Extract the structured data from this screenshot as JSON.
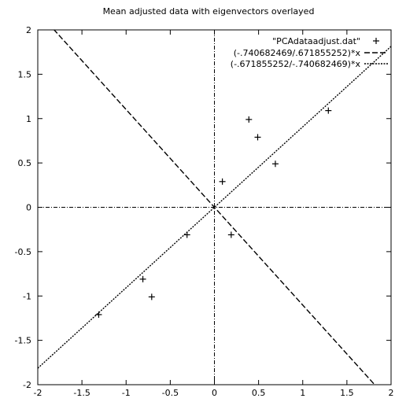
{
  "chart_data": {
    "type": "scatter",
    "title": "Mean adjusted data with eigenvectors overlayed",
    "xlabel": "",
    "ylabel": "",
    "xlim": [
      -2,
      2
    ],
    "ylim": [
      -2,
      2
    ],
    "x_ticks": [
      "-2",
      "-1.5",
      "-1",
      "-0.5",
      "0",
      "0.5",
      "1",
      "1.5",
      "2"
    ],
    "y_ticks": [
      "2",
      "1.5",
      "1",
      "0.5",
      "0",
      "-0.5",
      "-1",
      "-1.5",
      "-2"
    ],
    "grid": false,
    "zero_axes": true,
    "legend_position": "top-right",
    "series": [
      {
        "name": "\"PCAdataadjust.dat\"",
        "kind": "points",
        "marker": "plus",
        "x": [
          0.69,
          -1.31,
          0.39,
          0.09,
          1.29,
          0.49,
          0.19,
          -0.81,
          -0.31,
          -0.71
        ],
        "y": [
          0.49,
          -1.21,
          0.99,
          0.29,
          1.09,
          0.79,
          -0.31,
          -0.81,
          -0.31,
          -1.01
        ]
      },
      {
        "name": "(-.740682469/.671855252)*x",
        "kind": "line",
        "dash": "long-dash",
        "slope": -1.1024
      },
      {
        "name": "(-.671855252/-.740682469)*x",
        "kind": "line",
        "dash": "dotted",
        "slope": 0.9071
      }
    ]
  }
}
